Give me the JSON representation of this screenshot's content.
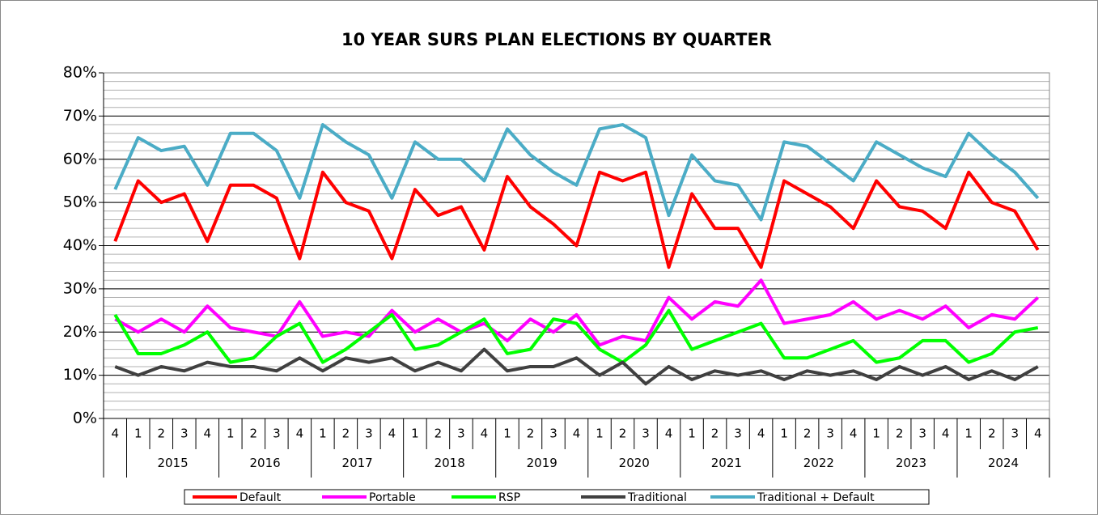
{
  "chart_data": {
    "type": "line",
    "title": "10 YEAR SURS PLAN ELECTIONS BY QUARTER",
    "categories": [
      "4",
      "1",
      "2",
      "3",
      "4",
      "1",
      "2",
      "3",
      "4",
      "1",
      "2",
      "3",
      "4",
      "1",
      "2",
      "3",
      "4",
      "1",
      "2",
      "3",
      "4",
      "1",
      "2",
      "3",
      "4",
      "1",
      "2",
      "3",
      "4",
      "1",
      "2",
      "3",
      "4",
      "1",
      "2",
      "3",
      "4",
      "1",
      "2",
      "3",
      "4"
    ],
    "groups": [
      {
        "label": null,
        "size": 1
      },
      {
        "label": "2015",
        "size": 4
      },
      {
        "label": "2016",
        "size": 4
      },
      {
        "label": "2017",
        "size": 4
      },
      {
        "label": "2018",
        "size": 4
      },
      {
        "label": "2019",
        "size": 4
      },
      {
        "label": "2020",
        "size": 4
      },
      {
        "label": "2021",
        "size": 4
      },
      {
        "label": "2022",
        "size": 4
      },
      {
        "label": "2023",
        "size": 4
      },
      {
        "label": "2024",
        "size": 4
      }
    ],
    "series": [
      {
        "name": "Default",
        "color": "#ff0000",
        "values": [
          41,
          55,
          50,
          52,
          41,
          54,
          54,
          51,
          37,
          57,
          50,
          48,
          37,
          53,
          47,
          49,
          39,
          56,
          49,
          45,
          40,
          57,
          55,
          57,
          35,
          52,
          44,
          44,
          35,
          55,
          52,
          49,
          44,
          55,
          49,
          48,
          44,
          57,
          50,
          48,
          39
        ]
      },
      {
        "name": "Portable",
        "color": "#ff00ff",
        "values": [
          23,
          20,
          23,
          20,
          26,
          21,
          20,
          19,
          27,
          19,
          20,
          19,
          25,
          20,
          23,
          20,
          22,
          18,
          23,
          20,
          24,
          17,
          19,
          18,
          28,
          23,
          27,
          26,
          32,
          22,
          23,
          24,
          27,
          23,
          25,
          23,
          26,
          21,
          24,
          23,
          28
        ]
      },
      {
        "name": "RSP",
        "color": "#00ff00",
        "values": [
          24,
          15,
          15,
          17,
          20,
          13,
          14,
          19,
          22,
          13,
          16,
          20,
          24,
          16,
          17,
          20,
          23,
          15,
          16,
          23,
          22,
          16,
          13,
          17,
          25,
          16,
          18,
          20,
          22,
          14,
          14,
          16,
          18,
          13,
          14,
          18,
          18,
          13,
          15,
          20,
          21
        ]
      },
      {
        "name": "Traditional",
        "color": "#404040",
        "values": [
          12,
          10,
          12,
          11,
          13,
          12,
          12,
          11,
          14,
          11,
          14,
          13,
          14,
          11,
          13,
          11,
          16,
          11,
          12,
          12,
          14,
          10,
          13,
          8,
          12,
          9,
          11,
          10,
          11,
          9,
          11,
          10,
          11,
          9,
          12,
          10,
          12,
          9,
          11,
          9,
          12
        ]
      },
      {
        "name": "Traditional + Default",
        "color": "#4bacc6",
        "values": [
          53,
          65,
          62,
          63,
          54,
          66,
          66,
          62,
          51,
          68,
          64,
          61,
          51,
          64,
          60,
          60,
          55,
          67,
          61,
          57,
          54,
          67,
          68,
          65,
          47,
          61,
          55,
          54,
          46,
          64,
          63,
          59,
          55,
          64,
          61,
          58,
          56,
          66,
          61,
          57,
          51
        ]
      }
    ],
    "ylim": [
      0,
      80
    ],
    "yticks": [
      {
        "value": 0,
        "label": "0%"
      },
      {
        "value": 10,
        "label": "10%"
      },
      {
        "value": 20,
        "label": "20%"
      },
      {
        "value": 30,
        "label": "30%"
      },
      {
        "value": 40,
        "label": "40%"
      },
      {
        "value": 50,
        "label": "50%"
      },
      {
        "value": 60,
        "label": "60%"
      },
      {
        "value": 70,
        "label": "70%"
      },
      {
        "value": 80,
        "label": "80%"
      }
    ],
    "grid": true,
    "minor_grid_step": 2,
    "legend": "bottom"
  }
}
